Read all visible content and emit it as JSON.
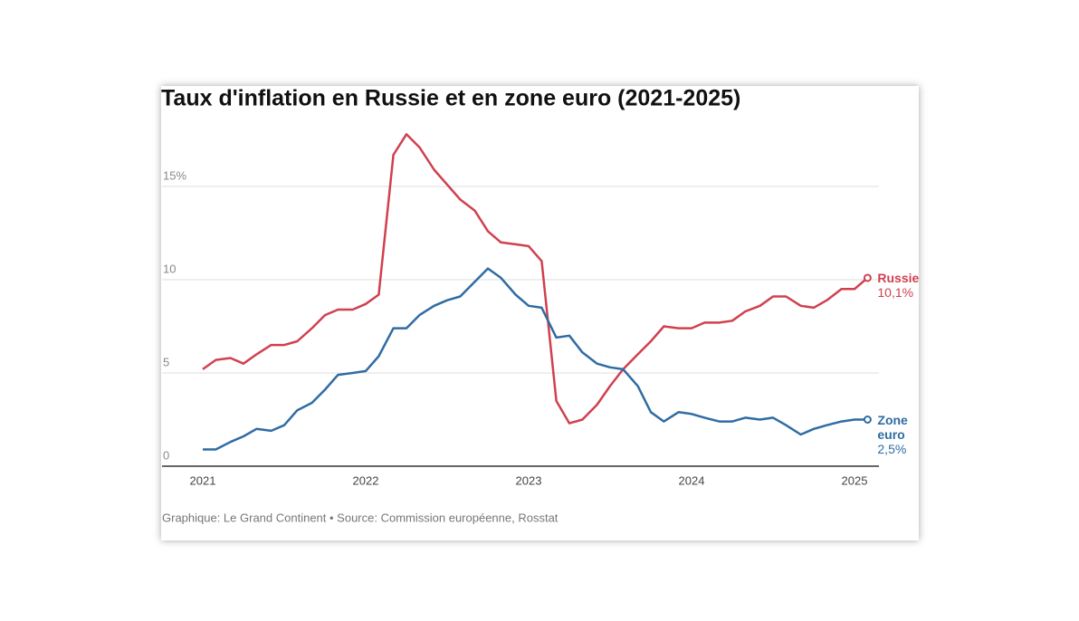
{
  "chart_data": {
    "type": "line",
    "title": "Taux d'inflation en Russie et en zone euro (2021-2025)",
    "source": "Graphique: Le Grand Continent • Source: Commission européenne, Rosstat",
    "x": [
      2021.0,
      2021.08,
      2021.17,
      2021.25,
      2021.33,
      2021.42,
      2021.5,
      2021.58,
      2021.67,
      2021.75,
      2021.83,
      2021.92,
      2022.0,
      2022.08,
      2022.17,
      2022.25,
      2022.33,
      2022.42,
      2022.5,
      2022.58,
      2022.67,
      2022.75,
      2022.83,
      2022.92,
      2023.0,
      2023.08,
      2023.17,
      2023.25,
      2023.33,
      2023.42,
      2023.5,
      2023.58,
      2023.67,
      2023.75,
      2023.83,
      2023.92,
      2024.0,
      2024.08,
      2024.17,
      2024.25,
      2024.33,
      2024.42,
      2024.5,
      2024.58,
      2024.67,
      2024.75,
      2024.83,
      2024.92,
      2025.0,
      2025.08
    ],
    "xlim": [
      2020.75,
      2025.15
    ],
    "xticks": [
      2021,
      2022,
      2023,
      2024,
      2025
    ],
    "ylim": [
      0,
      18
    ],
    "yticks": [
      0,
      5,
      10,
      {
        "value": 15,
        "label": "15%"
      }
    ],
    "grid": true,
    "series": [
      {
        "name": "Russie",
        "color": "#d0404f",
        "values": [
          5.2,
          5.7,
          5.8,
          5.5,
          6.0,
          6.5,
          6.5,
          6.7,
          7.4,
          8.1,
          8.4,
          8.4,
          8.7,
          9.2,
          16.7,
          17.8,
          17.1,
          15.9,
          15.1,
          14.3,
          13.7,
          12.6,
          12.0,
          11.9,
          11.8,
          11.0,
          3.5,
          2.3,
          2.5,
          3.3,
          4.3,
          5.2,
          6.0,
          6.7,
          7.5,
          7.4,
          7.4,
          7.7,
          7.7,
          7.8,
          8.3,
          8.6,
          9.1,
          9.1,
          8.6,
          8.5,
          8.9,
          9.5,
          9.5,
          10.1
        ],
        "value_labels": [
          null,
          null,
          null,
          null,
          null,
          null,
          null,
          null,
          null,
          null,
          null,
          null,
          null,
          null,
          null,
          null,
          null,
          null,
          null,
          null,
          null,
          null,
          null,
          null,
          null,
          null,
          null,
          null,
          null,
          null,
          null,
          null,
          null,
          null,
          null,
          null,
          null,
          null,
          null,
          null,
          null,
          null,
          null,
          null,
          null,
          null,
          null,
          null,
          null,
          "10,1%"
        ]
      },
      {
        "name": "Zone euro",
        "color": "#2f6ca3",
        "values": [
          0.9,
          0.9,
          1.3,
          1.6,
          2.0,
          1.9,
          2.2,
          3.0,
          3.4,
          4.1,
          4.9,
          5.0,
          5.1,
          5.9,
          7.4,
          7.4,
          8.1,
          8.6,
          8.9,
          9.1,
          9.9,
          10.6,
          10.1,
          9.2,
          8.6,
          8.5,
          6.9,
          7.0,
          6.1,
          5.5,
          5.3,
          5.2,
          4.3,
          2.9,
          2.4,
          2.9,
          2.8,
          2.6,
          2.4,
          2.4,
          2.6,
          2.5,
          2.6,
          2.2,
          1.7,
          2.0,
          2.2,
          2.4,
          2.5,
          2.5
        ],
        "value_labels": [
          null,
          null,
          null,
          null,
          null,
          null,
          null,
          null,
          null,
          null,
          null,
          null,
          null,
          null,
          null,
          null,
          null,
          null,
          null,
          null,
          null,
          null,
          null,
          null,
          null,
          null,
          null,
          null,
          null,
          null,
          null,
          null,
          null,
          null,
          null,
          null,
          null,
          null,
          null,
          null,
          null,
          null,
          null,
          null,
          null,
          null,
          null,
          null,
          null,
          "2,5%"
        ]
      }
    ]
  }
}
